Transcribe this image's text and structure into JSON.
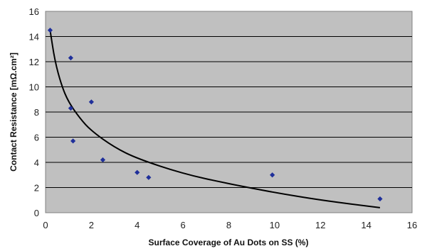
{
  "chart_data": {
    "type": "scatter",
    "xlabel": "Surface Coverage of Au Dots on SS  (%)",
    "ylabel": "Contact Resistance [mΩ.cm²]",
    "xlim": [
      0,
      16
    ],
    "ylim": [
      0,
      16
    ],
    "x_ticks": [
      "0",
      "2",
      "4",
      "6",
      "8",
      "10",
      "12",
      "14",
      "16"
    ],
    "y_ticks": [
      "0",
      "2",
      "4",
      "6",
      "8",
      "10",
      "12",
      "14",
      "16"
    ],
    "grid": "horizontal",
    "legend": "none",
    "series": [
      {
        "points": [
          {
            "x": 0.2,
            "y": 14.5
          },
          {
            "x": 1.1,
            "y": 12.3
          },
          {
            "x": 1.1,
            "y": 8.3
          },
          {
            "x": 2.0,
            "y": 8.8
          },
          {
            "x": 1.2,
            "y": 5.7
          },
          {
            "x": 2.5,
            "y": 4.2
          },
          {
            "x": 4.0,
            "y": 3.2
          },
          {
            "x": 4.5,
            "y": 2.8
          },
          {
            "x": 9.9,
            "y": 3.0
          },
          {
            "x": 14.6,
            "y": 1.1
          }
        ]
      }
    ],
    "trendline": {
      "type": "logarithmic",
      "points": [
        {
          "x": 0.2,
          "y": 14.5
        },
        {
          "x": 0.4,
          "y": 12.1
        },
        {
          "x": 0.7,
          "y": 10.1
        },
        {
          "x": 1.0,
          "y": 8.8
        },
        {
          "x": 1.5,
          "y": 7.5
        },
        {
          "x": 2.0,
          "y": 6.5
        },
        {
          "x": 3.0,
          "y": 5.2
        },
        {
          "x": 4.0,
          "y": 4.3
        },
        {
          "x": 6.0,
          "y": 3.1
        },
        {
          "x": 8.0,
          "y": 2.3
        },
        {
          "x": 10.0,
          "y": 1.6
        },
        {
          "x": 12.0,
          "y": 1.0
        },
        {
          "x": 14.6,
          "y": 0.4
        }
      ]
    },
    "colors": {
      "plot_background": "#c0c0c0",
      "marker": "#1f2f9a",
      "trendline": "#000000",
      "gridline": "#000000"
    }
  }
}
